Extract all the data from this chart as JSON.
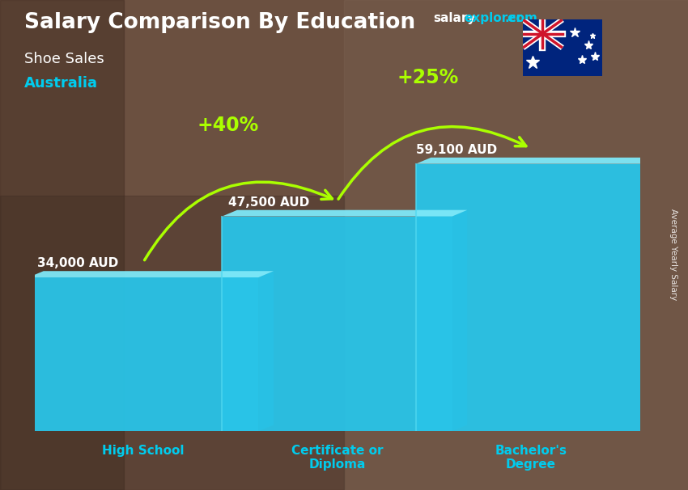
{
  "title_main": "Salary Comparison By Education",
  "subtitle1": "Shoe Sales",
  "subtitle2": "Australia",
  "categories": [
    "High School",
    "Certificate or\nDiploma",
    "Bachelor's\nDegree"
  ],
  "values": [
    34000,
    47500,
    59100
  ],
  "value_labels": [
    "34,000 AUD",
    "47,500 AUD",
    "59,100 AUD"
  ],
  "bar_face_color": "#29c4e8",
  "bar_top_color": "#7ee8f8",
  "bar_side_color": "#1a8faa",
  "bar_bottom_shadow": "#156070",
  "pct_labels": [
    "+40%",
    "+25%"
  ],
  "pct_color": "#aaff00",
  "bg_color": "#6b5040",
  "text_white": "#ffffff",
  "text_cyan": "#00ccee",
  "watermark_salary": "#ffffff",
  "watermark_explorer": "#00ccee",
  "watermark_dot_com": "#00ccee",
  "ylabel": "Average Yearly Salary",
  "ylim_max": 78000,
  "bar_width": 0.38,
  "x_positions": [
    0.18,
    0.5,
    0.82
  ],
  "figsize": [
    8.5,
    6.06
  ],
  "dpi": 100
}
